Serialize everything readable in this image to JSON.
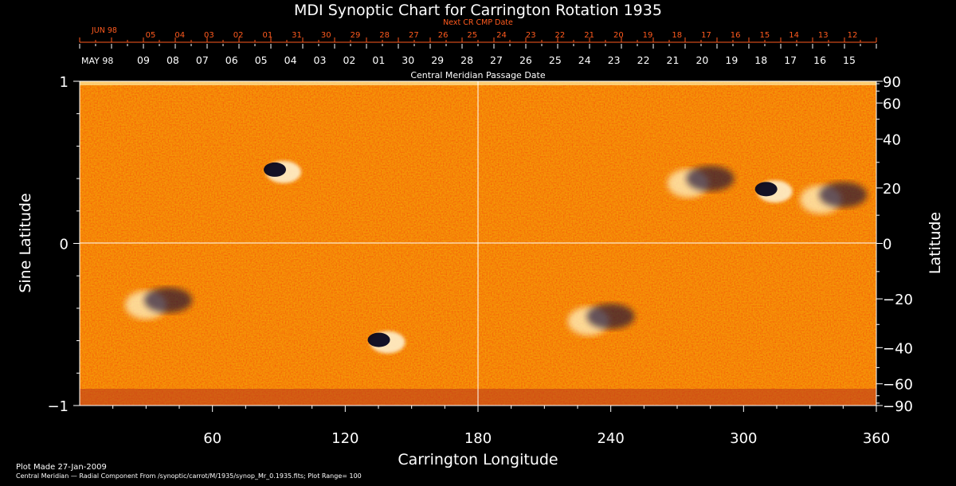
{
  "chart_data": {
    "type": "heatmap",
    "title": "MDI Synoptic Chart for Carrington Rotation 1935",
    "xlabel": "Carrington Longitude",
    "ylabel_left": "Sine Latitude",
    "ylabel_right": "Latitude",
    "xlim": [
      0,
      360
    ],
    "ylim": [
      -1,
      1
    ],
    "x_ticks": [
      "60",
      "120",
      "180",
      "240",
      "300",
      "360"
    ],
    "x_tick_values": [
      60,
      120,
      180,
      240,
      300,
      360
    ],
    "y_left_ticks": [
      "1",
      "0",
      "−1"
    ],
    "y_left_tick_values": [
      1,
      0,
      -1
    ],
    "y_right_ticks": [
      "90",
      "60",
      "40",
      "20",
      "0",
      "−20",
      "−40",
      "−60",
      "−90"
    ],
    "y_right_tick_values": [
      90,
      60,
      40,
      20,
      0,
      -20,
      -40,
      -60,
      -90
    ],
    "top_axis_label": "Central Meridian Passage Date",
    "top_axis_start_month": "MAY 98",
    "top_axis_dates": [
      "09",
      "08",
      "07",
      "06",
      "05",
      "04",
      "03",
      "02",
      "01",
      "30",
      "29",
      "28",
      "27",
      "26",
      "25",
      "24",
      "23",
      "22",
      "21",
      "20",
      "19",
      "18",
      "17",
      "16",
      "15"
    ],
    "next_cr_label": "Next CR CMP Date",
    "next_cr_start_month": "JUN 98",
    "next_cr_dates": [
      "05",
      "04",
      "03",
      "02",
      "01",
      "31",
      "30",
      "29",
      "28",
      "27",
      "26",
      "25",
      "24",
      "23",
      "22",
      "21",
      "20",
      "19",
      "18",
      "17",
      "16",
      "15",
      "14",
      "13",
      "12"
    ],
    "plot_range": 100,
    "active_regions": [
      {
        "lon": 90,
        "lat_sin": 0.45,
        "polarity": "bipolar"
      },
      {
        "lon": 137,
        "lat_sin": -0.6,
        "polarity": "bipolar"
      },
      {
        "lon": 40,
        "lat_sin": -0.35,
        "polarity": "negative"
      },
      {
        "lon": 240,
        "lat_sin": -0.45,
        "polarity": "negative"
      },
      {
        "lon": 285,
        "lat_sin": 0.4,
        "polarity": "negative"
      },
      {
        "lon": 312,
        "lat_sin": 0.33,
        "polarity": "bipolar"
      },
      {
        "lon": 345,
        "lat_sin": 0.3,
        "polarity": "negative"
      }
    ]
  },
  "footer": {
    "plot_made": "Plot Made 27-Jan-2009",
    "caption": "Central Meridian — Radial Component From /synoptic/carrot/M/1935/synop_Mr_0.1935.fits; Plot Range=  100"
  },
  "colors": {
    "background": "#000000",
    "accent": "#ff5a1e",
    "field": "#ee4a10"
  }
}
